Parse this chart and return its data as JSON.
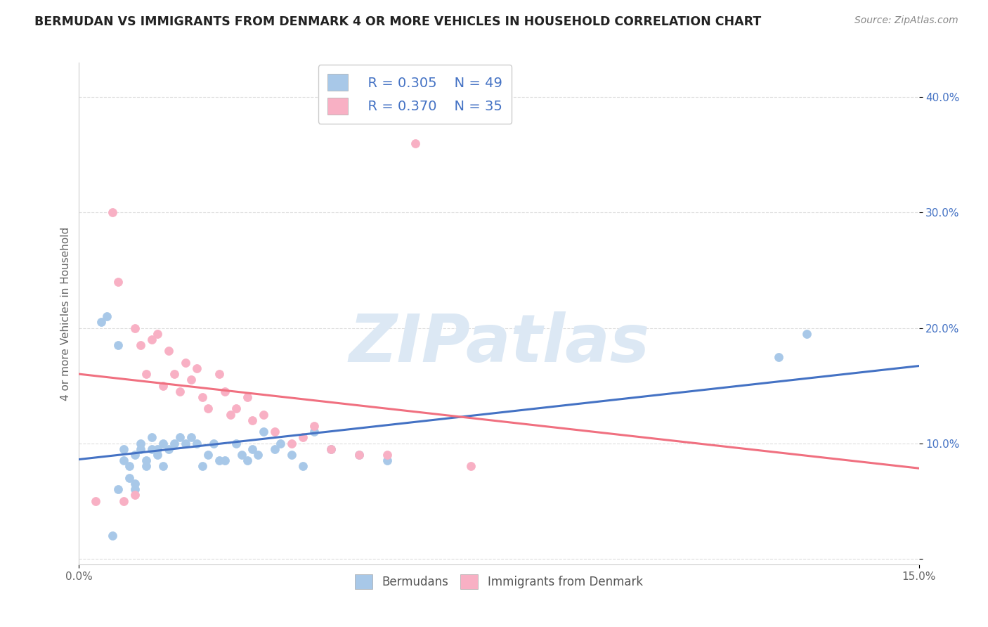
{
  "title": "BERMUDAN VS IMMIGRANTS FROM DENMARK 4 OR MORE VEHICLES IN HOUSEHOLD CORRELATION CHART",
  "source_text": "Source: ZipAtlas.com",
  "ylabel": "4 or more Vehicles in Household",
  "xlim": [
    0.0,
    0.15
  ],
  "ylim": [
    -0.005,
    0.43
  ],
  "bermuda_R": 0.305,
  "bermuda_N": 49,
  "denmark_R": 0.37,
  "denmark_N": 35,
  "bermuda_color": "#a8c8e8",
  "denmark_color": "#f8b0c4",
  "bermuda_line_color": "#4472c4",
  "denmark_line_color": "#f07080",
  "watermark_color": "#dce8f4",
  "legend_label_1": "Bermudans",
  "legend_label_2": "Immigrants from Denmark",
  "y_tick_vals": [
    0.0,
    0.1,
    0.2,
    0.3,
    0.4
  ],
  "y_tick_labels": [
    "",
    "10.0%",
    "20.0%",
    "30.0%",
    "40.0%"
  ],
  "bermuda_scatter_x": [
    0.004,
    0.005,
    0.006,
    0.007,
    0.007,
    0.008,
    0.008,
    0.009,
    0.009,
    0.01,
    0.01,
    0.01,
    0.011,
    0.011,
    0.012,
    0.012,
    0.013,
    0.013,
    0.014,
    0.014,
    0.015,
    0.015,
    0.016,
    0.017,
    0.018,
    0.019,
    0.02,
    0.021,
    0.022,
    0.023,
    0.024,
    0.025,
    0.026,
    0.028,
    0.029,
    0.03,
    0.031,
    0.032,
    0.033,
    0.035,
    0.036,
    0.038,
    0.04,
    0.042,
    0.045,
    0.05,
    0.055,
    0.125,
    0.13
  ],
  "bermuda_scatter_y": [
    0.205,
    0.21,
    0.02,
    0.185,
    0.06,
    0.085,
    0.095,
    0.07,
    0.08,
    0.06,
    0.065,
    0.09,
    0.095,
    0.1,
    0.08,
    0.085,
    0.095,
    0.105,
    0.09,
    0.095,
    0.08,
    0.1,
    0.095,
    0.1,
    0.105,
    0.1,
    0.105,
    0.1,
    0.08,
    0.09,
    0.1,
    0.085,
    0.085,
    0.1,
    0.09,
    0.085,
    0.095,
    0.09,
    0.11,
    0.095,
    0.1,
    0.09,
    0.08,
    0.11,
    0.095,
    0.09,
    0.085,
    0.175,
    0.195
  ],
  "denmark_scatter_x": [
    0.003,
    0.006,
    0.007,
    0.008,
    0.01,
    0.01,
    0.011,
    0.012,
    0.013,
    0.014,
    0.015,
    0.016,
    0.017,
    0.018,
    0.019,
    0.02,
    0.021,
    0.022,
    0.023,
    0.025,
    0.026,
    0.027,
    0.028,
    0.03,
    0.031,
    0.033,
    0.035,
    0.038,
    0.04,
    0.042,
    0.045,
    0.05,
    0.055,
    0.06,
    0.07
  ],
  "denmark_scatter_y": [
    0.05,
    0.3,
    0.24,
    0.05,
    0.055,
    0.2,
    0.185,
    0.16,
    0.19,
    0.195,
    0.15,
    0.18,
    0.16,
    0.145,
    0.17,
    0.155,
    0.165,
    0.14,
    0.13,
    0.16,
    0.145,
    0.125,
    0.13,
    0.14,
    0.12,
    0.125,
    0.11,
    0.1,
    0.105,
    0.115,
    0.095,
    0.09,
    0.09,
    0.36,
    0.08
  ]
}
